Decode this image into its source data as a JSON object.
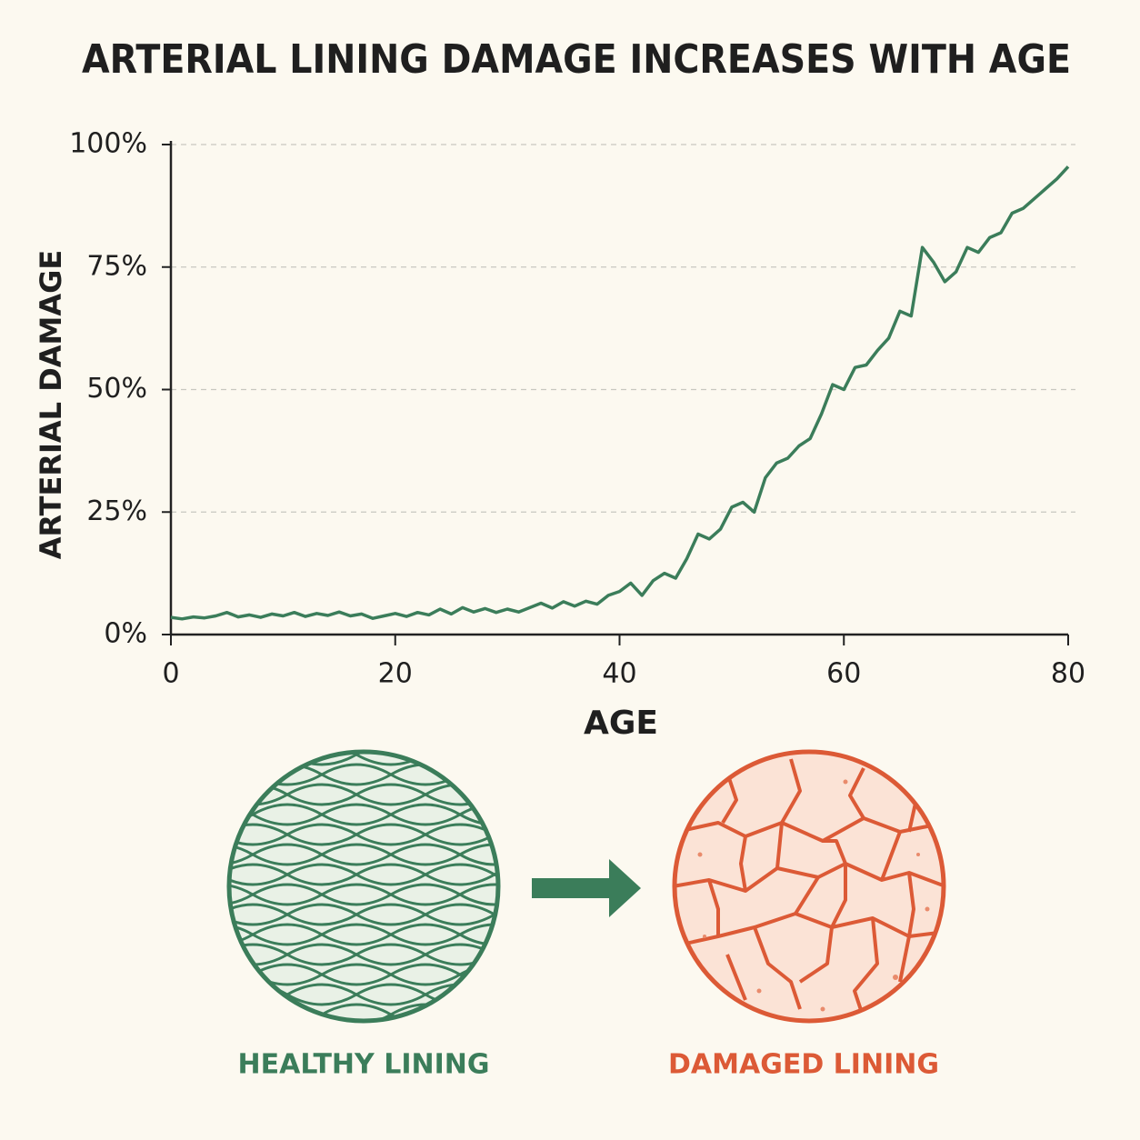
{
  "chart_data": {
    "type": "line",
    "title": "ARTERIAL LINING DAMAGE INCREASES WITH AGE",
    "x_label": "AGE",
    "y_label": "ARTERIAL DAMAGE",
    "x": [
      0,
      1,
      2,
      3,
      4,
      5,
      6,
      7,
      8,
      9,
      10,
      11,
      12,
      13,
      14,
      15,
      16,
      17,
      18,
      19,
      20,
      21,
      22,
      23,
      24,
      25,
      26,
      27,
      28,
      29,
      30,
      31,
      32,
      33,
      34,
      35,
      36,
      37,
      38,
      39,
      40,
      41,
      42,
      43,
      44,
      45,
      46,
      47,
      48,
      49,
      50,
      51,
      52,
      53,
      54,
      55,
      56,
      57,
      58,
      59,
      60,
      61,
      62,
      63,
      64,
      65,
      66,
      67,
      68,
      69,
      70,
      71,
      72,
      73,
      74,
      75,
      76,
      77,
      78,
      79,
      80
    ],
    "series": [
      {
        "color": "#3b7d5a",
        "values": [
          3.5,
          3.2,
          3.6,
          3.4,
          3.8,
          4.5,
          3.6,
          4.0,
          3.5,
          4.2,
          3.8,
          4.5,
          3.7,
          4.3,
          3.9,
          4.6,
          3.8,
          4.2,
          3.3,
          3.8,
          4.3,
          3.7,
          4.5,
          4.0,
          5.2,
          4.2,
          5.5,
          4.6,
          5.3,
          4.5,
          5.2,
          4.6,
          5.5,
          6.4,
          5.4,
          6.7,
          5.8,
          6.8,
          6.2,
          8.0,
          8.8,
          10.5,
          8.0,
          11.0,
          12.5,
          11.5,
          15.5,
          20.5,
          19.5,
          21.5,
          26.0,
          27.0,
          25.0,
          32.0,
          35.0,
          36.0,
          38.5,
          40.0,
          45.0,
          51.0,
          50.0,
          54.5,
          55.0,
          58.0,
          60.5,
          66.0,
          65.0,
          79.0,
          76.0,
          72.0,
          74.0,
          79.0,
          78.0,
          81.0,
          82.0,
          86.0,
          87.0,
          89.0,
          91.0,
          93.0,
          95.5
        ]
      }
    ],
    "xlim": [
      0,
      80
    ],
    "xticks": [
      0,
      20,
      40,
      60,
      80
    ],
    "ylim": [
      0,
      100
    ],
    "yticks": [
      {
        "value": 0,
        "label": "0%"
      },
      {
        "value": 25,
        "label": "25%"
      },
      {
        "value": 50,
        "label": "50%"
      },
      {
        "value": 75,
        "label": "75%"
      },
      {
        "value": 100,
        "label": "100%"
      }
    ],
    "grid": true
  },
  "illustrations": {
    "healthy_label": "HEALTHY LINING",
    "damaged_label": "DAMAGED LINING"
  }
}
